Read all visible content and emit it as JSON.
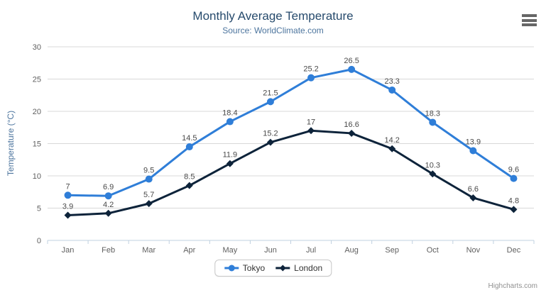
{
  "chart_data": {
    "type": "line",
    "title": "Monthly Average Temperature",
    "subtitle": "Source: WorldClimate.com",
    "xlabel": "",
    "ylabel": "Temperature (°C)",
    "ylim": [
      0,
      30
    ],
    "yticks": [
      0,
      5,
      10,
      15,
      20,
      25,
      30
    ],
    "grid": true,
    "data_labels": true,
    "legend_position": "bottom",
    "categories": [
      "Jan",
      "Feb",
      "Mar",
      "Apr",
      "May",
      "Jun",
      "Jul",
      "Aug",
      "Sep",
      "Oct",
      "Nov",
      "Dec"
    ],
    "series": [
      {
        "name": "Tokyo",
        "color": "#2f7ed8",
        "marker": "circle",
        "values": [
          7,
          6.9,
          9.5,
          14.5,
          18.4,
          21.5,
          25.2,
          26.5,
          23.3,
          18.3,
          13.9,
          9.6
        ]
      },
      {
        "name": "London",
        "color": "#0d233a",
        "marker": "diamond",
        "values": [
          3.9,
          4.2,
          5.7,
          8.5,
          11.9,
          15.2,
          17,
          16.6,
          14.2,
          10.3,
          6.6,
          4.8
        ]
      }
    ]
  },
  "credits": {
    "text": "Highcharts.com"
  },
  "icons": {
    "context_menu": "hamburger-menu"
  },
  "colors": {
    "title": "#274b6d",
    "subtitle": "#4d759e",
    "axis_label": "#606060",
    "data_label": "#4a4a4a",
    "grid_line": "#d8d8d8",
    "axis_line": "#c0d0e0",
    "legend_text": "#333333",
    "menu_icon": "#666666",
    "credits": "#909090"
  }
}
